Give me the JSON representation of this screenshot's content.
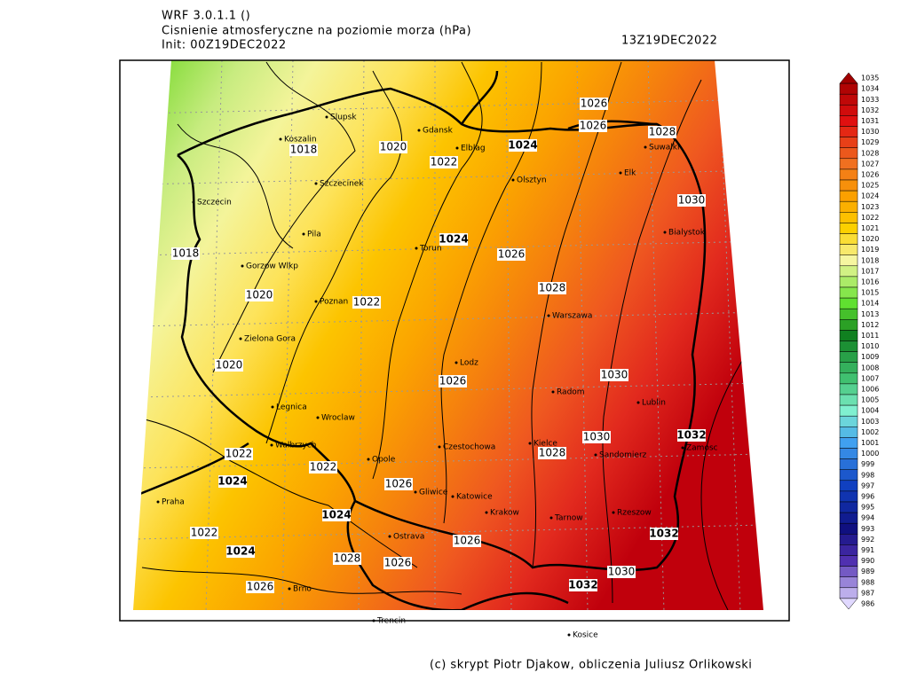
{
  "header": {
    "model": "WRF 3.0.1.1 ()",
    "title": "Cisnienie atmosferyczne na poziomie morza (hPa)",
    "init": "Init: 00Z19DEC2022",
    "valid": "13Z19DEC2022"
  },
  "cities": [
    "Slupsk",
    "Koszalin",
    "Gdansk",
    "Elblag",
    "Olsztyn",
    "Suwalki",
    "Elk",
    "Szczecinek",
    "Szczecin",
    "Pila",
    "Bialystok",
    "Torun",
    "Gorzow Wlkp",
    "Poznan",
    "Warszawa",
    "Zielona Gora",
    "Lodz",
    "Radom",
    "Lublin",
    "Legnica",
    "Wroclaw",
    "Walbrzych",
    "Czestochowa",
    "Kielce",
    "Zamosc",
    "Sandomierz",
    "Opole",
    "Gliwice",
    "Katowice",
    "Praha",
    "Krakow",
    "Tarnow",
    "Rzeszow",
    "Ostrava",
    "Brno",
    "Trencin",
    "Kosice"
  ],
  "isobar_labels": [
    "1026",
    "1026",
    "1028",
    "1024",
    "1020",
    "1022",
    "1018",
    "1030",
    "1024",
    "1026",
    "1018",
    "1028",
    "1020",
    "1022",
    "1020",
    "1030",
    "1026",
    "1030",
    "1032",
    "1028",
    "1022",
    "1022",
    "1024",
    "1026",
    "1024",
    "1022",
    "1026",
    "1032",
    "1024",
    "1028",
    "1026",
    "1030",
    "1032",
    "1026"
  ],
  "colorbar": {
    "levels": [
      1035,
      1034,
      1033,
      1032,
      1031,
      1030,
      1029,
      1028,
      1027,
      1026,
      1025,
      1024,
      1023,
      1022,
      1021,
      1020,
      1019,
      1018,
      1017,
      1016,
      1015,
      1014,
      1013,
      1012,
      1011,
      1010,
      1009,
      1008,
      1007,
      1006,
      1005,
      1004,
      1003,
      1002,
      1001,
      1000,
      999,
      998,
      997,
      996,
      995,
      994,
      993,
      992,
      991,
      990,
      989,
      988,
      987,
      986
    ]
  },
  "footer": {
    "credits": "(c) skrypt Piotr Djakow, obliczenia Juliusz Orlikowski"
  }
}
